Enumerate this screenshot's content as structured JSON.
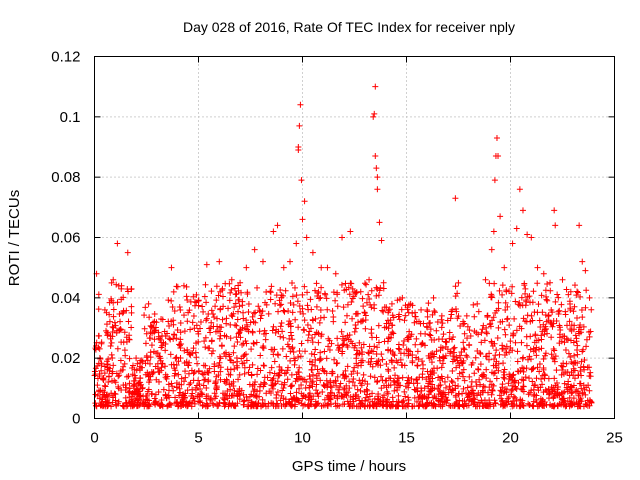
{
  "chart_data": {
    "type": "scatter",
    "title": "Day 028 of 2016, Rate Of TEC Index for receiver nply",
    "xlabel": "GPS time / hours",
    "ylabel": "ROTI / TECUs",
    "xlim": [
      0,
      25
    ],
    "ylim": [
      0,
      0.12
    ],
    "x_ticks": [
      0,
      5,
      10,
      15,
      20,
      25
    ],
    "x_tick_labels": [
      "0",
      "5",
      "10",
      "15",
      "20",
      "25"
    ],
    "y_ticks": [
      0,
      0.02,
      0.04,
      0.06,
      0.08,
      0.1,
      0.12
    ],
    "y_tick_labels": [
      "0",
      "0.02",
      "0.04",
      "0.06",
      "0.08",
      "0.1",
      "0.12"
    ],
    "grid": true,
    "marker": "+",
    "color": "#ff0000",
    "series": [
      {
        "name": "ROTI",
        "points": [
          [
            0.1,
            0.048
          ],
          [
            0.5,
            0.036
          ],
          [
            0.9,
            0.046
          ],
          [
            1.1,
            0.058
          ],
          [
            1.3,
            0.044
          ],
          [
            1.6,
            0.055
          ],
          [
            2.0,
            0.02
          ],
          [
            2.6,
            0.038
          ],
          [
            3.2,
            0.033
          ],
          [
            3.7,
            0.05
          ],
          [
            4.3,
            0.044
          ],
          [
            4.9,
            0.041
          ],
          [
            5.4,
            0.051
          ],
          [
            6.0,
            0.052
          ],
          [
            6.6,
            0.046
          ],
          [
            7.0,
            0.045
          ],
          [
            7.3,
            0.05
          ],
          [
            7.7,
            0.056
          ],
          [
            8.1,
            0.052
          ],
          [
            8.6,
            0.062
          ],
          [
            8.8,
            0.064
          ],
          [
            9.1,
            0.05
          ],
          [
            9.4,
            0.052
          ],
          [
            9.7,
            0.058
          ],
          [
            9.8,
            0.09
          ],
          [
            9.8,
            0.089
          ],
          [
            9.85,
            0.097
          ],
          [
            9.9,
            0.104
          ],
          [
            9.95,
            0.079
          ],
          [
            10.0,
            0.066
          ],
          [
            10.1,
            0.072
          ],
          [
            10.2,
            0.06
          ],
          [
            10.5,
            0.055
          ],
          [
            10.9,
            0.05
          ],
          [
            11.2,
            0.05
          ],
          [
            11.6,
            0.048
          ],
          [
            11.9,
            0.06
          ],
          [
            12.3,
            0.062
          ],
          [
            12.8,
            0.042
          ],
          [
            13.2,
            0.046
          ],
          [
            13.4,
            0.1
          ],
          [
            13.45,
            0.101
          ],
          [
            13.5,
            0.11
          ],
          [
            13.5,
            0.087
          ],
          [
            13.55,
            0.083
          ],
          [
            13.6,
            0.08
          ],
          [
            13.6,
            0.076
          ],
          [
            13.7,
            0.065
          ],
          [
            13.8,
            0.059
          ],
          [
            13.9,
            0.045
          ],
          [
            14.3,
            0.038
          ],
          [
            14.8,
            0.04
          ],
          [
            15.2,
            0.038
          ],
          [
            15.7,
            0.036
          ],
          [
            16.3,
            0.04
          ],
          [
            16.7,
            0.034
          ],
          [
            17.2,
            0.036
          ],
          [
            17.35,
            0.073
          ],
          [
            17.9,
            0.034
          ],
          [
            18.4,
            0.038
          ],
          [
            18.8,
            0.046
          ],
          [
            19.1,
            0.056
          ],
          [
            19.2,
            0.062
          ],
          [
            19.25,
            0.079
          ],
          [
            19.3,
            0.087
          ],
          [
            19.35,
            0.093
          ],
          [
            19.4,
            0.087
          ],
          [
            19.5,
            0.067
          ],
          [
            19.7,
            0.05
          ],
          [
            20.1,
            0.058
          ],
          [
            20.3,
            0.063
          ],
          [
            20.45,
            0.076
          ],
          [
            20.6,
            0.069
          ],
          [
            20.8,
            0.061
          ],
          [
            21.0,
            0.06
          ],
          [
            21.3,
            0.05
          ],
          [
            21.6,
            0.048
          ],
          [
            21.9,
            0.045
          ],
          [
            22.1,
            0.069
          ],
          [
            22.15,
            0.064
          ],
          [
            22.5,
            0.046
          ],
          [
            22.9,
            0.042
          ],
          [
            23.3,
            0.064
          ],
          [
            23.45,
            0.052
          ],
          [
            23.6,
            0.049
          ],
          [
            23.8,
            0.04
          ]
        ],
        "background_band": {
          "x_range": [
            0,
            23.9
          ],
          "y_floor": 0.004,
          "y_typical": 0.018
        }
      }
    ]
  }
}
